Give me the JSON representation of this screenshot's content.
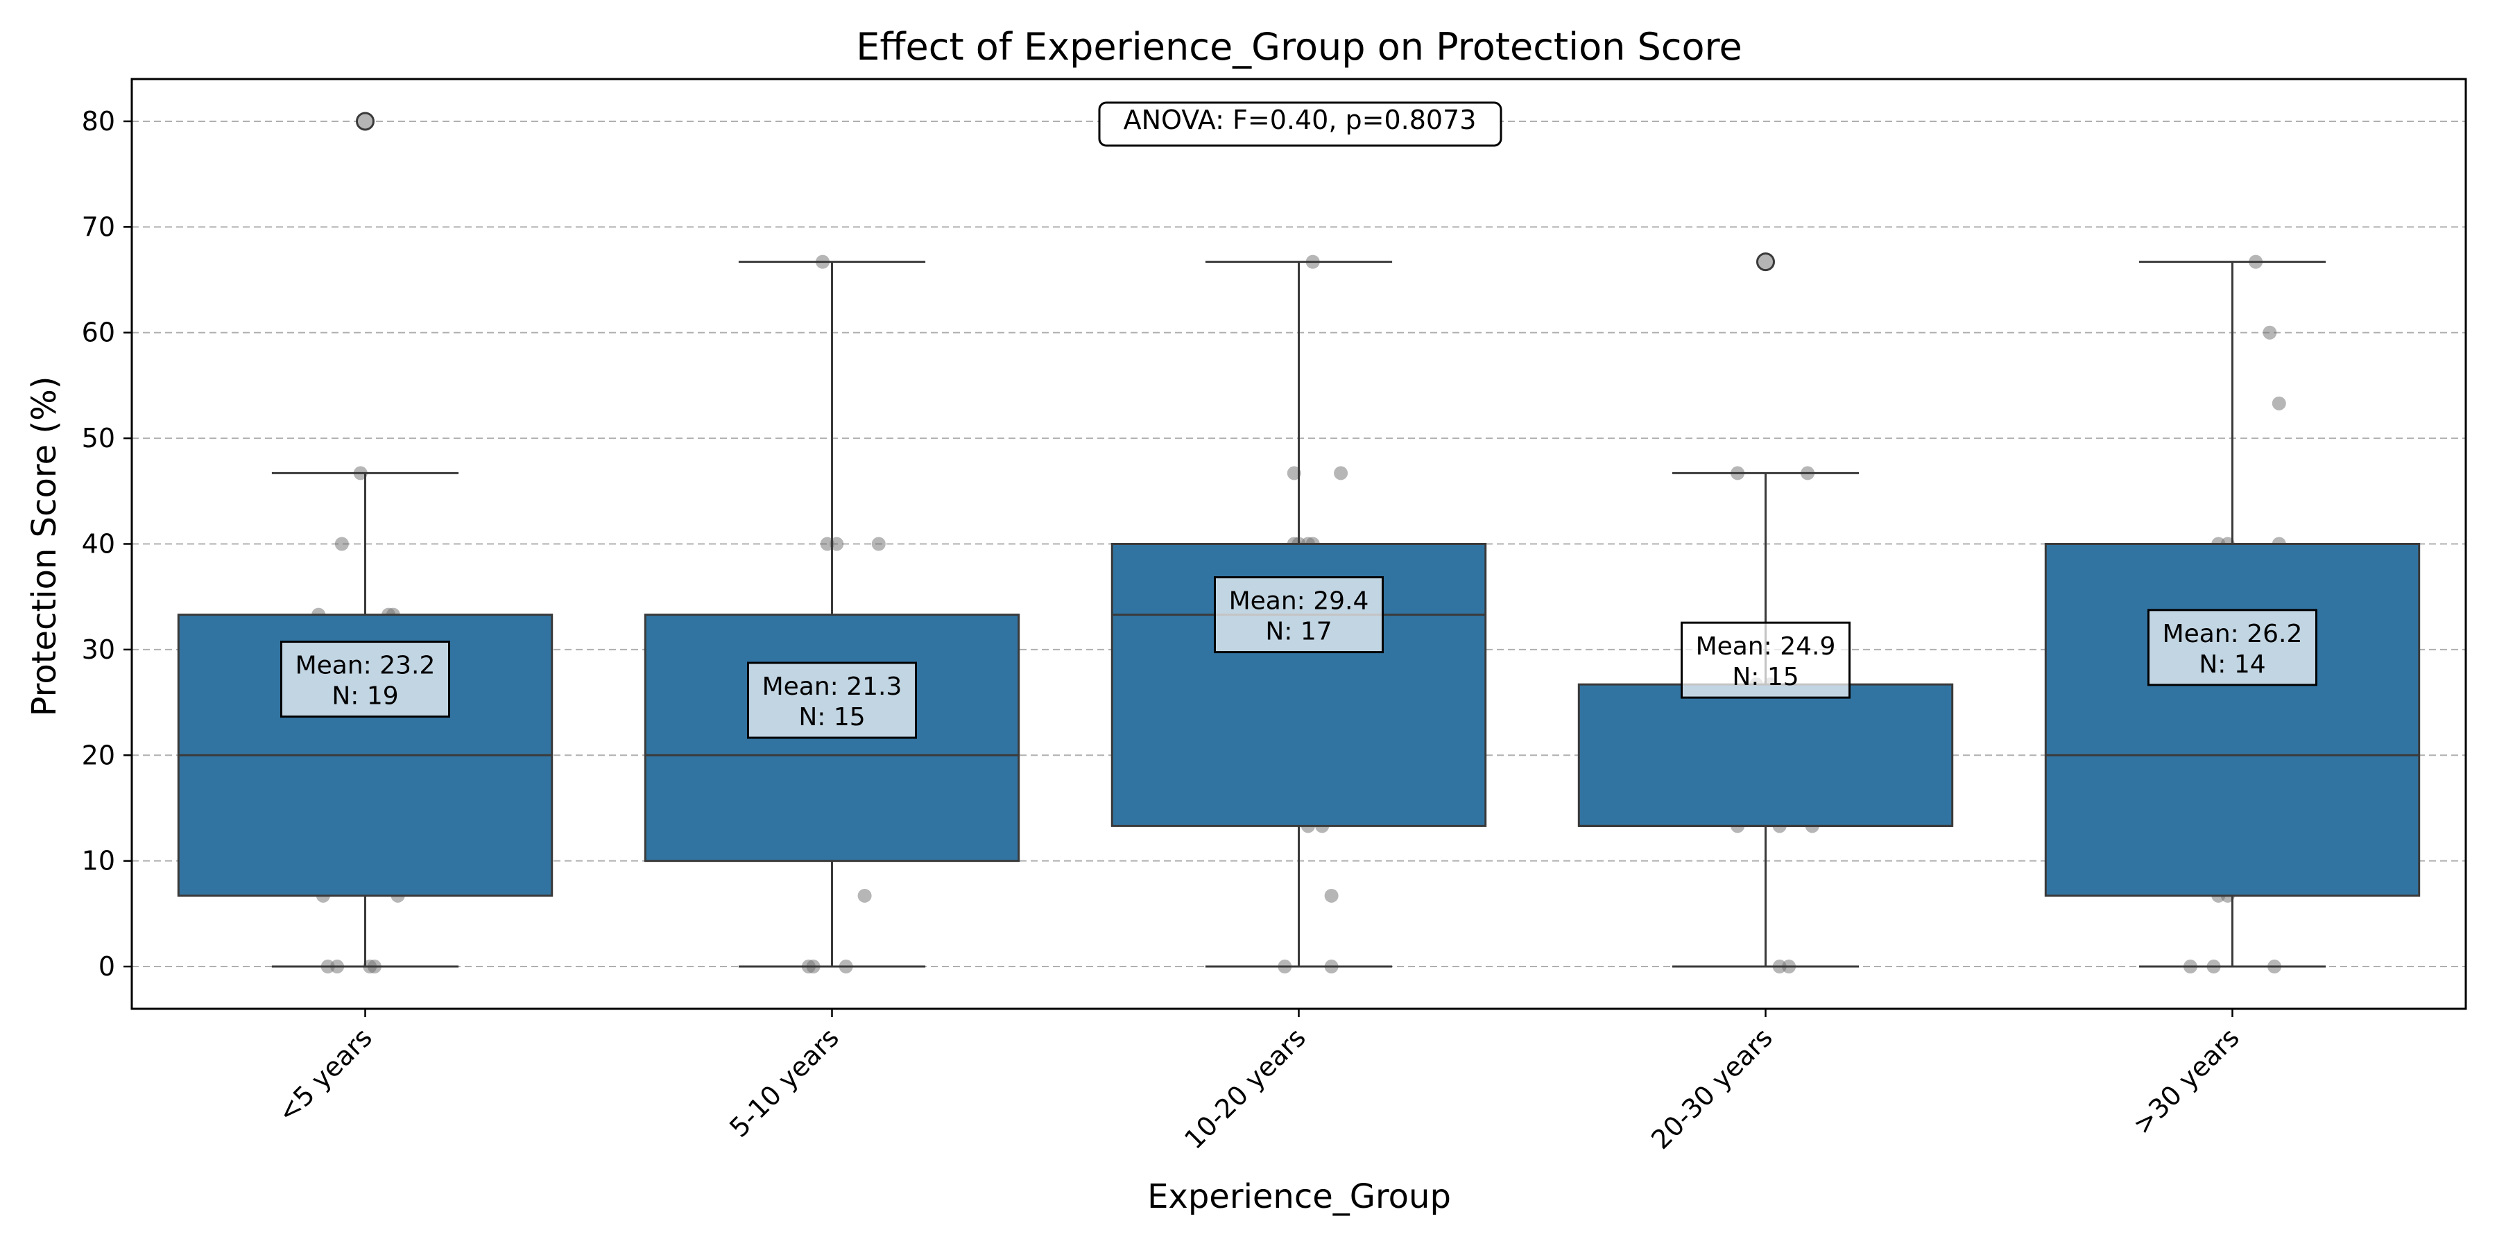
{
  "chart_data": {
    "type": "box",
    "title": "Effect of Experience_Group on Protection Score",
    "xlabel": "Experience_Group",
    "ylabel": "Protection Score (%)",
    "ylim": [
      -4,
      84
    ],
    "yticks": [
      0,
      10,
      20,
      30,
      40,
      50,
      60,
      70,
      80
    ],
    "grid": "y dashed",
    "annotation": "ANOVA: F=0.40, p=0.8073",
    "colors": {
      "box_fill": "#3274a1",
      "box_edge": "#3a3a3a",
      "grid": "#b0b0b0",
      "points": "#6e6e6e",
      "label_box": "#ffffff"
    },
    "categories": [
      "<5 years",
      "5-10 years",
      "10-20 years",
      "20-30 years",
      ">30 years"
    ],
    "boxes": [
      {
        "category": "<5 years",
        "q1": 6.7,
        "median": 20.0,
        "q3": 33.3,
        "whisker_low": 0.0,
        "whisker_high": 46.7,
        "outliers": [
          80.0
        ],
        "mean_label": "Mean: 23.2",
        "n_label": "N: 19",
        "label_y": 27.2,
        "points": [
          [
            -0.08,
            0
          ],
          [
            -0.06,
            0
          ],
          [
            0.02,
            0
          ],
          [
            0.01,
            0
          ],
          [
            -0.09,
            6.7
          ],
          [
            0.07,
            6.7
          ],
          [
            -0.06,
            20
          ],
          [
            -0.02,
            20
          ],
          [
            0.01,
            20
          ],
          [
            0.08,
            20
          ],
          [
            -0.1,
            26.7
          ],
          [
            0.05,
            26.7
          ],
          [
            -0.1,
            33.3
          ],
          [
            0.05,
            33.3
          ],
          [
            0.06,
            33.3
          ],
          [
            -0.05,
            40
          ],
          [
            -0.01,
            46.7
          ],
          [
            0,
            80
          ]
        ]
      },
      {
        "category": "5-10 years",
        "q1": 10.0,
        "median": 20.0,
        "q3": 33.3,
        "whisker_low": 0.0,
        "whisker_high": 66.7,
        "outliers": [],
        "mean_label": "Mean: 21.3",
        "n_label": "N: 15",
        "label_y": 25.2,
        "points": [
          [
            -0.05,
            0
          ],
          [
            -0.04,
            0
          ],
          [
            0.03,
            0
          ],
          [
            0.07,
            6.7
          ],
          [
            -0.1,
            13.3
          ],
          [
            0.03,
            13.3
          ],
          [
            0.04,
            13.3
          ],
          [
            0.05,
            20
          ],
          [
            0.08,
            20
          ],
          [
            0.08,
            20
          ],
          [
            -0.03,
            26.7
          ],
          [
            0.01,
            40
          ],
          [
            -0.01,
            40
          ],
          [
            0.1,
            40
          ],
          [
            -0.02,
            66.7
          ]
        ]
      },
      {
        "category": "10-20 years",
        "q1": 13.3,
        "median": 33.3,
        "q3": 40.0,
        "whisker_low": 0.0,
        "whisker_high": 66.7,
        "outliers": [],
        "mean_label": "Mean: 29.4",
        "n_label": "N: 17",
        "label_y": 33.3,
        "points": [
          [
            -0.03,
            0
          ],
          [
            0.07,
            0
          ],
          [
            0.07,
            6.7
          ],
          [
            0.02,
            13.3
          ],
          [
            0.05,
            13.3
          ],
          [
            -0.08,
            26.7
          ],
          [
            -0.07,
            26.7
          ],
          [
            -0.06,
            26.7
          ],
          [
            -0.1,
            33.3
          ],
          [
            0,
            40
          ],
          [
            -0.01,
            40
          ],
          [
            0.02,
            40
          ],
          [
            0.03,
            40
          ],
          [
            -0.01,
            46.7
          ],
          [
            0.09,
            46.7
          ],
          [
            0.03,
            66.7
          ]
        ]
      },
      {
        "category": "20-30 years",
        "q1": 13.3,
        "median": 13.3,
        "q3": 26.7,
        "whisker_low": 0.0,
        "whisker_high": 46.7,
        "outliers": [
          66.7
        ],
        "mean_label": "Mean: 24.9",
        "n_label": "N: 15",
        "label_y": 29.0,
        "points": [
          [
            0.03,
            0
          ],
          [
            0.05,
            0
          ],
          [
            -0.06,
            13.3
          ],
          [
            0.03,
            13.3
          ],
          [
            0.1,
            13.3
          ],
          [
            0.04,
            20
          ],
          [
            0.09,
            20
          ],
          [
            -0.02,
            26.7
          ],
          [
            0.01,
            26.7
          ],
          [
            -0.06,
            46.7
          ],
          [
            0.09,
            46.7
          ],
          [
            0,
            66.7
          ]
        ]
      },
      {
        "category": ">30 years",
        "q1": 6.7,
        "median": 20.0,
        "q3": 40.0,
        "whisker_low": 0.0,
        "whisker_high": 66.7,
        "outliers": [],
        "mean_label": "Mean: 26.2",
        "n_label": "N: 14",
        "label_y": 30.2,
        "points": [
          [
            -0.09,
            0
          ],
          [
            -0.04,
            0
          ],
          [
            0.09,
            0
          ],
          [
            -0.03,
            6.7
          ],
          [
            -0.01,
            6.7
          ],
          [
            0.1,
            13.3
          ],
          [
            -0.12,
            20
          ],
          [
            -0.03,
            20
          ],
          [
            -0.03,
            40
          ],
          [
            -0.01,
            40
          ],
          [
            0.1,
            40
          ],
          [
            0.1,
            53.3
          ],
          [
            0.08,
            60
          ],
          [
            0.05,
            66.7
          ]
        ]
      }
    ]
  }
}
